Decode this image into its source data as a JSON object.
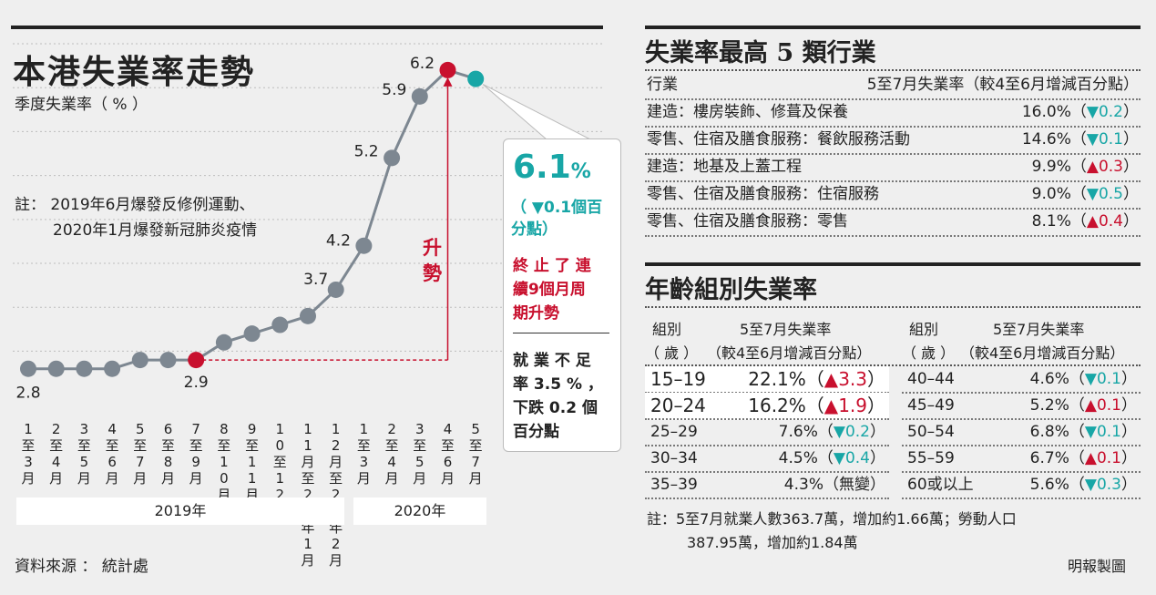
{
  "left": {
    "title": "本港失業率走勢",
    "subtitle": "季度失業率（ % ）",
    "note_line1": "註： 2019年6月爆發反修例運動、",
    "note_line2": "2020年1月爆發新冠肺炎疫情",
    "rise_label": "升勢",
    "year_2019": "2019年",
    "year_2020": "2020年",
    "source": "資料來源 ： 統計處"
  },
  "callout": {
    "value": "6.1",
    "unit": "%",
    "change_line1": "（ ▼0.1個百",
    "change_line2": "分點）",
    "red_line1": "終 止 了 連",
    "red_line2": "續9個月周",
    "red_line3": "期升勢",
    "black_line1": "就 業 不 足",
    "black_line2": "率 3.5 % ，",
    "black_line3": "下跌 0.2 個",
    "black_line4": "百分點"
  },
  "chart_data": {
    "type": "line",
    "title": "本港失業率走勢",
    "ylabel": "季度失業率（ % ）",
    "categories": [
      "1至3月",
      "2至4月",
      "3至5月",
      "4至6月",
      "5至7月",
      "6至8月",
      "7至9月",
      "8至10月",
      "9至11月",
      "10至12月",
      "11月至2020年1月",
      "12月至2020年2月",
      "1至3月",
      "2至4月",
      "3至5月",
      "4至6月",
      "5至7月"
    ],
    "category_labels": [
      "1至3月",
      "2至4月",
      "3至5月",
      "4至6月",
      "5至7月",
      "6至8月",
      "7至9月",
      "8至10月",
      "9至11月",
      "10至12月",
      "11月至20年1月",
      "12月至20年2月",
      "1至3月",
      "2至4月",
      "3至5月",
      "4至6月",
      "5至7月"
    ],
    "values": [
      2.8,
      2.8,
      2.8,
      2.8,
      2.9,
      2.9,
      2.9,
      3.1,
      3.2,
      3.3,
      3.4,
      3.7,
      4.2,
      5.2,
      5.9,
      6.2,
      6.1
    ],
    "data_labels": {
      "0": "2.8",
      "6": "2.9",
      "11": "3.7",
      "12": "4.2",
      "13": "5.2",
      "14": "5.9",
      "15": "6.2"
    },
    "ylim": [
      2.6,
      6.5
    ],
    "highlight_red": [
      6,
      15
    ],
    "highlight_teal": [
      16
    ],
    "colors": {
      "line": "#7d8791",
      "red": "#c8102e",
      "teal": "#18a6a6"
    }
  },
  "industries": {
    "title": "失業率最高 5 類行業",
    "header_left": "行業",
    "header_right": "5至7月失業率（較4至6月增減百分點）",
    "rows": [
      {
        "name": "建造：樓房裝飾、修葺及保養",
        "rate": "16.0%",
        "open": "（",
        "arrow": "▼",
        "change": "0.2",
        "close": "）",
        "dir": "down"
      },
      {
        "name": "零售、住宿及膳食服務：餐飲服務活動",
        "rate": "14.6%",
        "open": "（",
        "arrow": "▼",
        "change": "0.1",
        "close": "）",
        "dir": "down"
      },
      {
        "name": "建造：地基及上蓋工程",
        "rate": "9.9%",
        "open": "（",
        "arrow": "▲",
        "change": "0.3",
        "close": "）",
        "dir": "up"
      },
      {
        "name": "零售、住宿及膳食服務：住宿服務",
        "rate": "9.0%",
        "open": "（",
        "arrow": "▼",
        "change": "0.5",
        "close": "）",
        "dir": "down"
      },
      {
        "name": "零售、住宿及膳食服務：零售",
        "rate": "8.1%",
        "open": "（",
        "arrow": "▲",
        "change": "0.4",
        "close": "）",
        "dir": "up"
      }
    ]
  },
  "age": {
    "title": "年齡組別失業率",
    "col_group_1": "組別",
    "col_group_2": "（ 歲 ）",
    "col_rate_1": "5至7月失業率",
    "col_rate_2": "（較4至6月增減百分點）",
    "left_rows": [
      {
        "group": "15–19",
        "rate": "22.1%",
        "open": "（",
        "arrow": "▲",
        "change": "3.3",
        "close": "）",
        "dir": "up"
      },
      {
        "group": "20–24",
        "rate": "16.2%",
        "open": "（",
        "arrow": "▲",
        "change": "1.9",
        "close": "）",
        "dir": "up"
      },
      {
        "group": "25–29",
        "rate": "7.6%",
        "open": "（",
        "arrow": "▼",
        "change": "0.2",
        "close": "）",
        "dir": "down"
      },
      {
        "group": "30–34",
        "rate": "4.5%",
        "open": "（",
        "arrow": "▼",
        "change": "0.4",
        "close": "）",
        "dir": "down"
      },
      {
        "group": "35–39",
        "rate": "4.3%",
        "open": "（",
        "arrow": "",
        "change": "無變",
        "close": "）",
        "dir": "none"
      }
    ],
    "right_rows": [
      {
        "group": "40–44",
        "rate": "4.6%",
        "open": "（",
        "arrow": "▼",
        "change": "0.1",
        "close": "）",
        "dir": "down"
      },
      {
        "group": "45–49",
        "rate": "5.2%",
        "open": "（",
        "arrow": "▲",
        "change": "0.1",
        "close": "）",
        "dir": "up"
      },
      {
        "group": "50–54",
        "rate": "6.8%",
        "open": "（",
        "arrow": "▼",
        "change": "0.1",
        "close": "）",
        "dir": "down"
      },
      {
        "group": "55–59",
        "rate": "6.7%",
        "open": "（",
        "arrow": "▲",
        "change": "0.1",
        "close": "）",
        "dir": "up"
      },
      {
        "group": "60或以上",
        "rate": "5.6%",
        "open": "（",
        "arrow": "▼",
        "change": "0.3",
        "close": "）",
        "dir": "down"
      }
    ],
    "note_line1": "註：5至7月就業人數363.7萬，增加約1.66萬；勞動人口",
    "note_line2": "387.95萬，增加約1.84萬",
    "credit": "明報製圖"
  }
}
